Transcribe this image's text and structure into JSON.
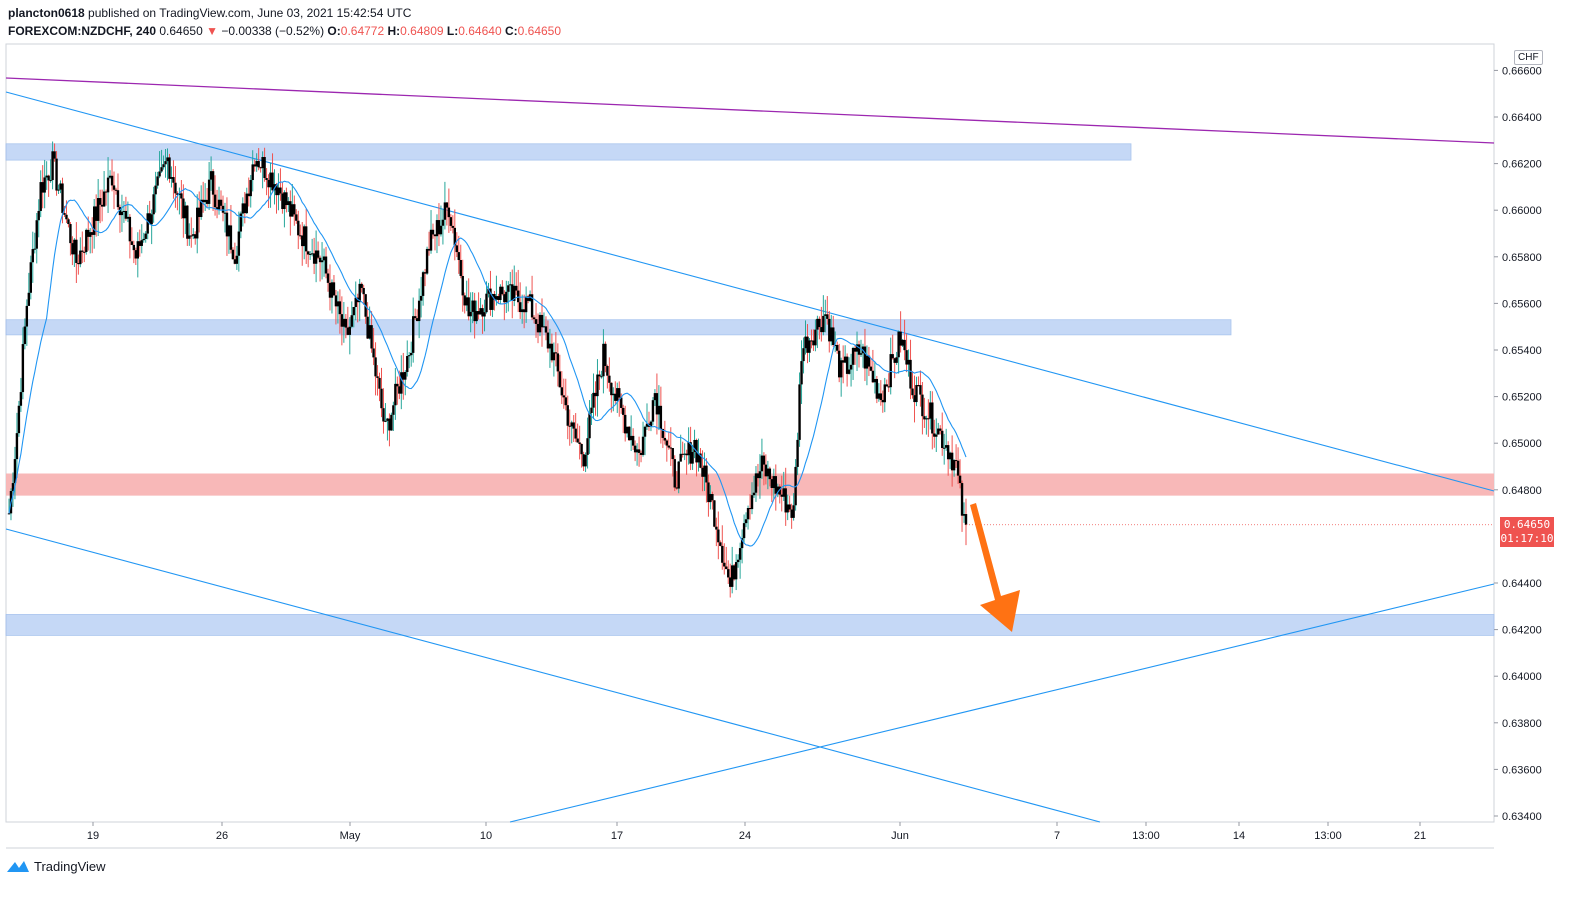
{
  "header": {
    "author": "plancton0618",
    "published_text": "published on TradingView.com, June 03, 2021 15:42:54 UTC",
    "symbol": "FOREXCOM:NZDCHF, 240",
    "last": "0.64650",
    "change_arrow": "▼",
    "change": "−0.00338 (−0.52%)",
    "o_label": "O:",
    "o": "0.64772",
    "h_label": "H:",
    "h": "0.64809",
    "l_label": "L:",
    "l": "0.64640",
    "c_label": "C:",
    "c": "0.64650"
  },
  "price_badge": {
    "price": "0.64650",
    "countdown": "01:17:10"
  },
  "currency_label": "CHF",
  "footer": {
    "brand": "TradingView"
  },
  "colors": {
    "up": "#26a69a",
    "down": "#ef5350",
    "candle_body": "#000000",
    "ma": "#2196f3",
    "trendline": "#2196f3",
    "purple_line": "#9c27b0",
    "zone_blue": "#bbd2f5",
    "zone_red": "#f8b4b4",
    "arrow": "#ff7213"
  },
  "chart_data": {
    "type": "candlestick",
    "symbol": "NZDCHF",
    "timeframe": "240",
    "ylim": [
      0.6334,
      0.6664
    ],
    "y_ticks": [
      "0.66600",
      "0.66400",
      "0.66200",
      "0.66000",
      "0.65800",
      "0.65600",
      "0.65400",
      "0.65200",
      "0.65000",
      "0.64800",
      "0.64400",
      "0.64200",
      "0.64000",
      "0.63800",
      "0.63600",
      "0.63400"
    ],
    "x_ticks": [
      "19",
      "26",
      "May",
      "10",
      "17",
      "24",
      "Jun",
      "7",
      "13:00",
      "14",
      "13:00",
      "21"
    ],
    "zones": [
      {
        "color": "blue",
        "from": 0.66215,
        "to": 0.66285
      },
      {
        "color": "blue",
        "from": 0.65465,
        "to": 0.6553
      },
      {
        "color": "red",
        "from": 0.64775,
        "to": 0.6487
      },
      {
        "color": "blue",
        "from": 0.64175,
        "to": 0.64265
      }
    ],
    "close_path": [
      [
        0,
        0.647
      ],
      [
        4,
        0.6505
      ],
      [
        9,
        0.656
      ],
      [
        16,
        0.661
      ],
      [
        22,
        0.662
      ],
      [
        34,
        0.6578
      ],
      [
        52,
        0.6615
      ],
      [
        64,
        0.658
      ],
      [
        80,
        0.6622
      ],
      [
        92,
        0.6588
      ],
      [
        102,
        0.6612
      ],
      [
        114,
        0.6582
      ],
      [
        124,
        0.6624
      ],
      [
        136,
        0.661
      ],
      [
        146,
        0.6592
      ],
      [
        158,
        0.6578
      ],
      [
        170,
        0.6545
      ],
      [
        178,
        0.6565
      ],
      [
        190,
        0.6505
      ],
      [
        202,
        0.654
      ],
      [
        212,
        0.6585
      ],
      [
        222,
        0.6602
      ],
      [
        232,
        0.6555
      ],
      [
        246,
        0.6565
      ],
      [
        262,
        0.656
      ],
      [
        274,
        0.654
      ],
      [
        284,
        0.6505
      ],
      [
        290,
        0.6495
      ],
      [
        300,
        0.6538
      ],
      [
        306,
        0.652
      ],
      [
        318,
        0.6495
      ],
      [
        326,
        0.6522
      ],
      [
        336,
        0.6485
      ],
      [
        346,
        0.65
      ],
      [
        356,
        0.647
      ],
      [
        364,
        0.6438
      ],
      [
        372,
        0.6472
      ],
      [
        380,
        0.649
      ],
      [
        396,
        0.647
      ],
      [
        400,
        0.654
      ],
      [
        412,
        0.6556
      ],
      [
        420,
        0.653
      ],
      [
        430,
        0.654
      ],
      [
        440,
        0.652
      ],
      [
        450,
        0.6545
      ],
      [
        456,
        0.6525
      ],
      [
        466,
        0.651
      ],
      [
        474,
        0.6498
      ],
      [
        478,
        0.649
      ],
      [
        482,
        0.6465
      ]
    ],
    "current_price": 0.6465,
    "annotations": [
      "descending trendline",
      "descending channel lower line",
      "ascending support line",
      "long-term purple trendline",
      "orange arrow pointing down to 0.64200 zone"
    ]
  }
}
